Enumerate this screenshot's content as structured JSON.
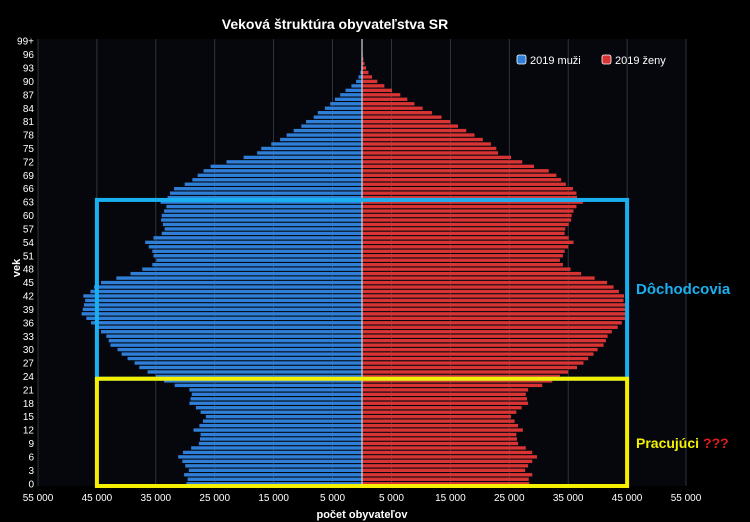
{
  "chart_data": {
    "type": "bar",
    "orientation": "horizontal-population-pyramid",
    "title": "Veková štruktúra obyvateľstva SR",
    "xlabel": "počet obyvateľov",
    "ylabel": "vek",
    "xlim": [
      -55000,
      55000
    ],
    "x_ticks": [
      {
        "value": -55000,
        "label": "55 000"
      },
      {
        "value": -45000,
        "label": "45 000"
      },
      {
        "value": -35000,
        "label": "35 000"
      },
      {
        "value": -25000,
        "label": "25 000"
      },
      {
        "value": -15000,
        "label": "15 000"
      },
      {
        "value": -5000,
        "label": "5 000"
      },
      {
        "value": 5000,
        "label": "5 000"
      },
      {
        "value": 15000,
        "label": "15 000"
      },
      {
        "value": 25000,
        "label": "25 000"
      },
      {
        "value": 35000,
        "label": "35 000"
      },
      {
        "value": 45000,
        "label": "45 000"
      },
      {
        "value": 55000,
        "label": "55 000"
      }
    ],
    "y_ticks": [
      "0",
      "3",
      "6",
      "9",
      "12",
      "15",
      "18",
      "21",
      "24",
      "27",
      "30",
      "33",
      "36",
      "39",
      "42",
      "45",
      "48",
      "51",
      "54",
      "57",
      "60",
      "63",
      "66",
      "69",
      "72",
      "75",
      "78",
      "81",
      "84",
      "87",
      "90",
      "93",
      "96",
      "99+"
    ],
    "grid": true,
    "legend_position": "top-right",
    "series": [
      {
        "name": "2019 muži",
        "color": "#2f7fd8",
        "values": [
          29800,
          29600,
          30200,
          29400,
          30000,
          30500,
          31200,
          30400,
          29000,
          27700,
          27500,
          27400,
          28600,
          27600,
          27000,
          26500,
          27400,
          28200,
          29300,
          29100,
          28900,
          29300,
          31800,
          33600,
          35000,
          36400,
          37800,
          38600,
          39800,
          40800,
          41500,
          42700,
          43000,
          43400,
          44300,
          45200,
          46000,
          46800,
          47600,
          47400,
          47200,
          47000,
          47300,
          46100,
          45500,
          44300,
          41700,
          39300,
          37300,
          35600,
          34900,
          35400,
          35600,
          36200,
          36800,
          35400,
          34000,
          33500,
          33800,
          34100,
          34000,
          33600,
          33200,
          34200,
          33000,
          32600,
          31900,
          30100,
          28800,
          27900,
          26900,
          25700,
          23000,
          20100,
          17800,
          17100,
          15400,
          13900,
          12800,
          11600,
          10300,
          9500,
          8200,
          7500,
          6300,
          5400,
          4600,
          3700,
          2800,
          1800,
          1000,
          600,
          280,
          130,
          60,
          25,
          12,
          6,
          3,
          9
        ]
      },
      {
        "name": "2019 ženy",
        "color": "#d93434",
        "values": [
          28400,
          28300,
          28900,
          27700,
          28200,
          28900,
          29700,
          28900,
          27800,
          26500,
          26300,
          26200,
          27300,
          26500,
          25900,
          25300,
          26200,
          27100,
          28200,
          28000,
          27800,
          28200,
          30600,
          32300,
          33600,
          35000,
          36500,
          37600,
          38400,
          39300,
          40000,
          41000,
          41400,
          41700,
          42400,
          43400,
          44100,
          44700,
          45000,
          44800,
          44700,
          44400,
          44500,
          43600,
          42700,
          41600,
          39500,
          37200,
          35400,
          34100,
          33600,
          34100,
          34400,
          35000,
          35900,
          35100,
          34400,
          34500,
          35100,
          35500,
          35600,
          35900,
          36400,
          37500,
          36500,
          36400,
          35800,
          34600,
          33800,
          33000,
          31700,
          29200,
          27200,
          25300,
          23100,
          22800,
          21900,
          20500,
          19100,
          17700,
          16300,
          15000,
          13500,
          11900,
          10300,
          8900,
          7700,
          6500,
          5100,
          3800,
          2600,
          1700,
          1100,
          700,
          420,
          240,
          130,
          70,
          35,
          25
        ]
      }
    ],
    "annotations": [
      {
        "label": "Dôchodcovia",
        "color": "#1ab0f0",
        "age_range": [
          24,
          63
        ],
        "x_range": [
          -45000,
          45000
        ]
      },
      {
        "label": "Pracujúci",
        "suffix": "???",
        "color": "#f4f000",
        "suffix_color": "#e21c1c",
        "age_range": [
          0,
          23
        ],
        "x_range": [
          -45000,
          45000
        ]
      }
    ]
  }
}
